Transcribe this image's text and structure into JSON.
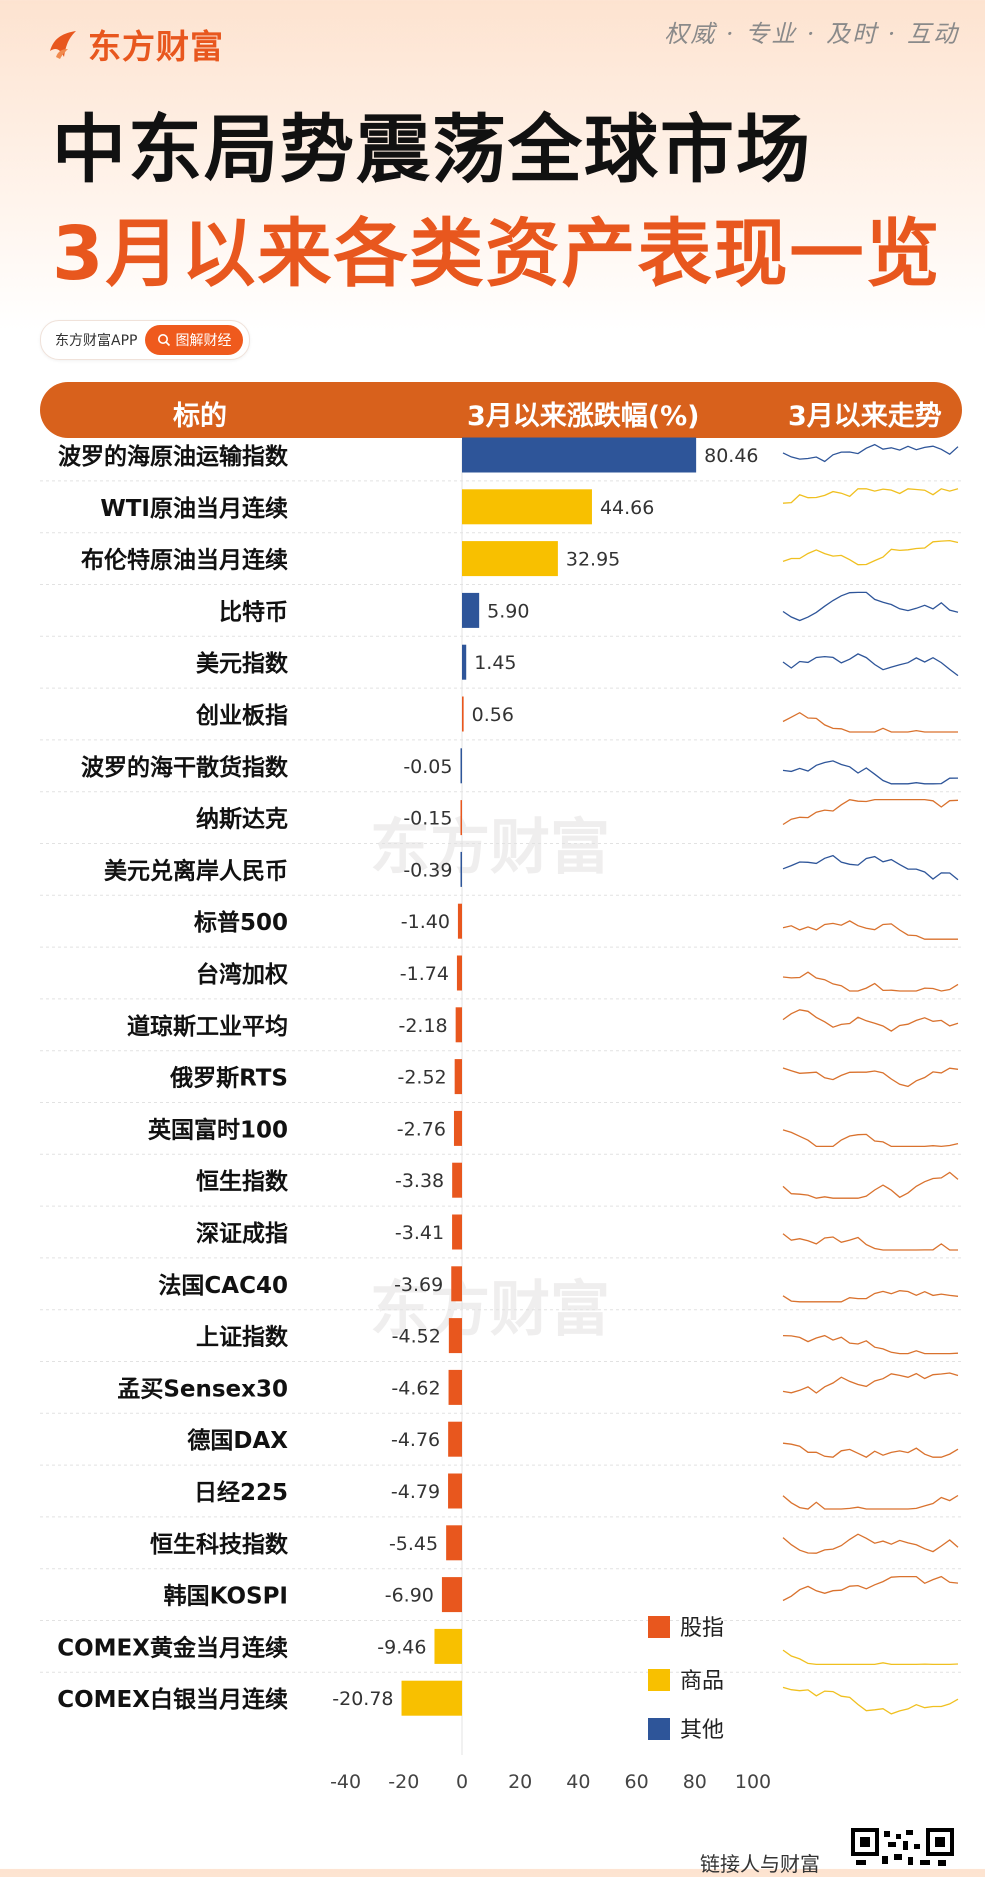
{
  "brand": {
    "name": "东方财富",
    "slogan": "权威 · 专业 · 及时 · 互动"
  },
  "title": {
    "line1": "中东局势震荡全球市场",
    "line2": "3月以来各类资产表现一览"
  },
  "app": {
    "name": "东方财富APP",
    "search_label": "图解财经"
  },
  "table_header": {
    "col1": "标的",
    "col2": "3月以来涨跌幅(%)",
    "col3": "3月以来走势"
  },
  "watermark": "东方财富",
  "footer": {
    "text": "链接人与财富"
  },
  "colors": {
    "股指": "#e8571e",
    "商品": "#f8c000",
    "其他": "#2e5599"
  },
  "chart_data": {
    "type": "bar",
    "orientation": "horizontal",
    "xlim": [
      -40,
      100
    ],
    "x_ticks": [
      -40,
      -20,
      0,
      20,
      40,
      60,
      80,
      100
    ],
    "legend": [
      "股指",
      "商品",
      "其他"
    ],
    "legend_position": "bottom-right",
    "rows": [
      {
        "name": "波罗的海原油运输指数",
        "value": 80.46,
        "label": "80.46",
        "category": "其他"
      },
      {
        "name": "WTI原油当月连续",
        "value": 44.66,
        "label": "44.66",
        "category": "商品"
      },
      {
        "name": "布伦特原油当月连续",
        "value": 32.95,
        "label": "32.95",
        "category": "商品"
      },
      {
        "name": "比特币",
        "value": 5.9,
        "label": "5.90",
        "category": "其他"
      },
      {
        "name": "美元指数",
        "value": 1.45,
        "label": "1.45",
        "category": "其他"
      },
      {
        "name": "创业板指",
        "value": 0.56,
        "label": "0.56",
        "category": "股指"
      },
      {
        "name": "波罗的海干散货指数",
        "value": -0.05,
        "label": "-0.05",
        "category": "其他"
      },
      {
        "name": "纳斯达克",
        "value": -0.15,
        "label": "-0.15",
        "category": "股指"
      },
      {
        "name": "美元兑离岸人民币",
        "value": -0.39,
        "label": "-0.39",
        "category": "其他"
      },
      {
        "name": "标普500",
        "value": -1.4,
        "label": "-1.40",
        "category": "股指"
      },
      {
        "name": "台湾加权",
        "value": -1.74,
        "label": "-1.74",
        "category": "股指"
      },
      {
        "name": "道琼斯工业平均",
        "value": -2.18,
        "label": "-2.18",
        "category": "股指"
      },
      {
        "name": "俄罗斯RTS",
        "value": -2.52,
        "label": "-2.52",
        "category": "股指"
      },
      {
        "name": "英国富时100",
        "value": -2.76,
        "label": "-2.76",
        "category": "股指"
      },
      {
        "name": "恒生指数",
        "value": -3.38,
        "label": "-3.38",
        "category": "股指"
      },
      {
        "name": "深证成指",
        "value": -3.41,
        "label": "-3.41",
        "category": "股指"
      },
      {
        "name": "法国CAC40",
        "value": -3.69,
        "label": "-3.69",
        "category": "股指"
      },
      {
        "name": "上证指数",
        "value": -4.52,
        "label": "-4.52",
        "category": "股指"
      },
      {
        "name": "孟买Sensex30",
        "value": -4.62,
        "label": "-4.62",
        "category": "股指"
      },
      {
        "name": "德国DAX",
        "value": -4.76,
        "label": "-4.76",
        "category": "股指"
      },
      {
        "name": "日经225",
        "value": -4.79,
        "label": "-4.79",
        "category": "股指"
      },
      {
        "name": "恒生科技指数",
        "value": -5.45,
        "label": "-5.45",
        "category": "股指"
      },
      {
        "name": "韩国KOSPI",
        "value": -6.9,
        "label": "-6.90",
        "category": "股指"
      },
      {
        "name": "COMEX黄金当月连续",
        "value": -9.46,
        "label": "-9.46",
        "category": "商品"
      },
      {
        "name": "COMEX白银当月连续",
        "value": -20.78,
        "label": "-20.78",
        "category": "商品"
      }
    ]
  }
}
